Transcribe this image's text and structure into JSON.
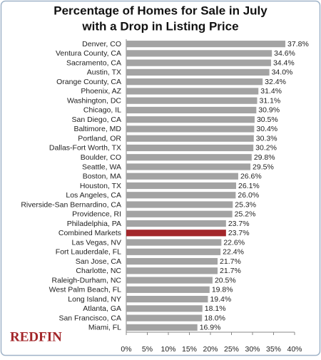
{
  "chart_data": {
    "type": "hbar",
    "title": [
      "Percentage of Homes for Sale in July",
      "with a Drop in Listing Price"
    ],
    "categories": [
      "Denver, CO",
      "Ventura County, CA",
      "Sacramento, CA",
      "Austin, TX",
      "Orange County, CA",
      "Phoenix, AZ",
      "Washington, DC",
      "Chicago, IL",
      "San Diego, CA",
      "Baltimore, MD",
      "Portland, OR",
      "Dallas-Fort Worth, TX",
      "Boulder, CO",
      "Seattle, WA",
      "Boston, MA",
      "Houston, TX",
      "Los Angeles, CA",
      "Riverside-San Bernardino, CA",
      "Providence, RI",
      "Philadelphia, PA",
      "Combined Markets",
      "Las Vegas, NV",
      "Fort Lauderdale, FL",
      "San Jose, CA",
      "Charlotte, NC",
      "Raleigh-Durham, NC",
      "West Palm Beach, FL",
      "Long Island, NY",
      "Atlanta, GA",
      "San Francisco, CA",
      "Miami, FL"
    ],
    "values": [
      37.8,
      34.6,
      34.4,
      34.0,
      32.4,
      31.4,
      31.1,
      30.9,
      30.5,
      30.4,
      30.3,
      30.2,
      29.8,
      29.5,
      26.6,
      26.1,
      26.0,
      25.3,
      25.2,
      23.7,
      23.7,
      22.6,
      22.4,
      21.7,
      21.7,
      20.5,
      19.8,
      19.4,
      18.1,
      18.0,
      16.9
    ],
    "value_labels": [
      "37.8%",
      "34.6%",
      "34.4%",
      "34.0%",
      "32.4%",
      "31.4%",
      "31.1%",
      "30.9%",
      "30.5%",
      "30.4%",
      "30.3%",
      "30.2%",
      "29.8%",
      "29.5%",
      "26.6%",
      "26.1%",
      "26.0%",
      "25.3%",
      "25.2%",
      "23.7%",
      "23.7%",
      "22.6%",
      "22.4%",
      "21.7%",
      "21.7%",
      "20.5%",
      "19.8%",
      "19.4%",
      "18.1%",
      "18.0%",
      "16.9%"
    ],
    "color": "#a3a3a3",
    "highlight": {
      "category": "Combined Markets",
      "color": "#a3262a"
    },
    "xlim": [
      0,
      40
    ],
    "xticks": [
      {
        "value": 0,
        "label": "0%"
      },
      {
        "value": 5,
        "label": "5%"
      },
      {
        "value": 10,
        "label": "10%"
      },
      {
        "value": 15,
        "label": "15%"
      },
      {
        "value": 20,
        "label": "20%"
      },
      {
        "value": 25,
        "label": "25%"
      },
      {
        "value": 30,
        "label": "30%"
      },
      {
        "value": 35,
        "label": "35%"
      },
      {
        "value": 40,
        "label": "40%"
      }
    ],
    "grid": false
  },
  "brand": "REDFIN"
}
